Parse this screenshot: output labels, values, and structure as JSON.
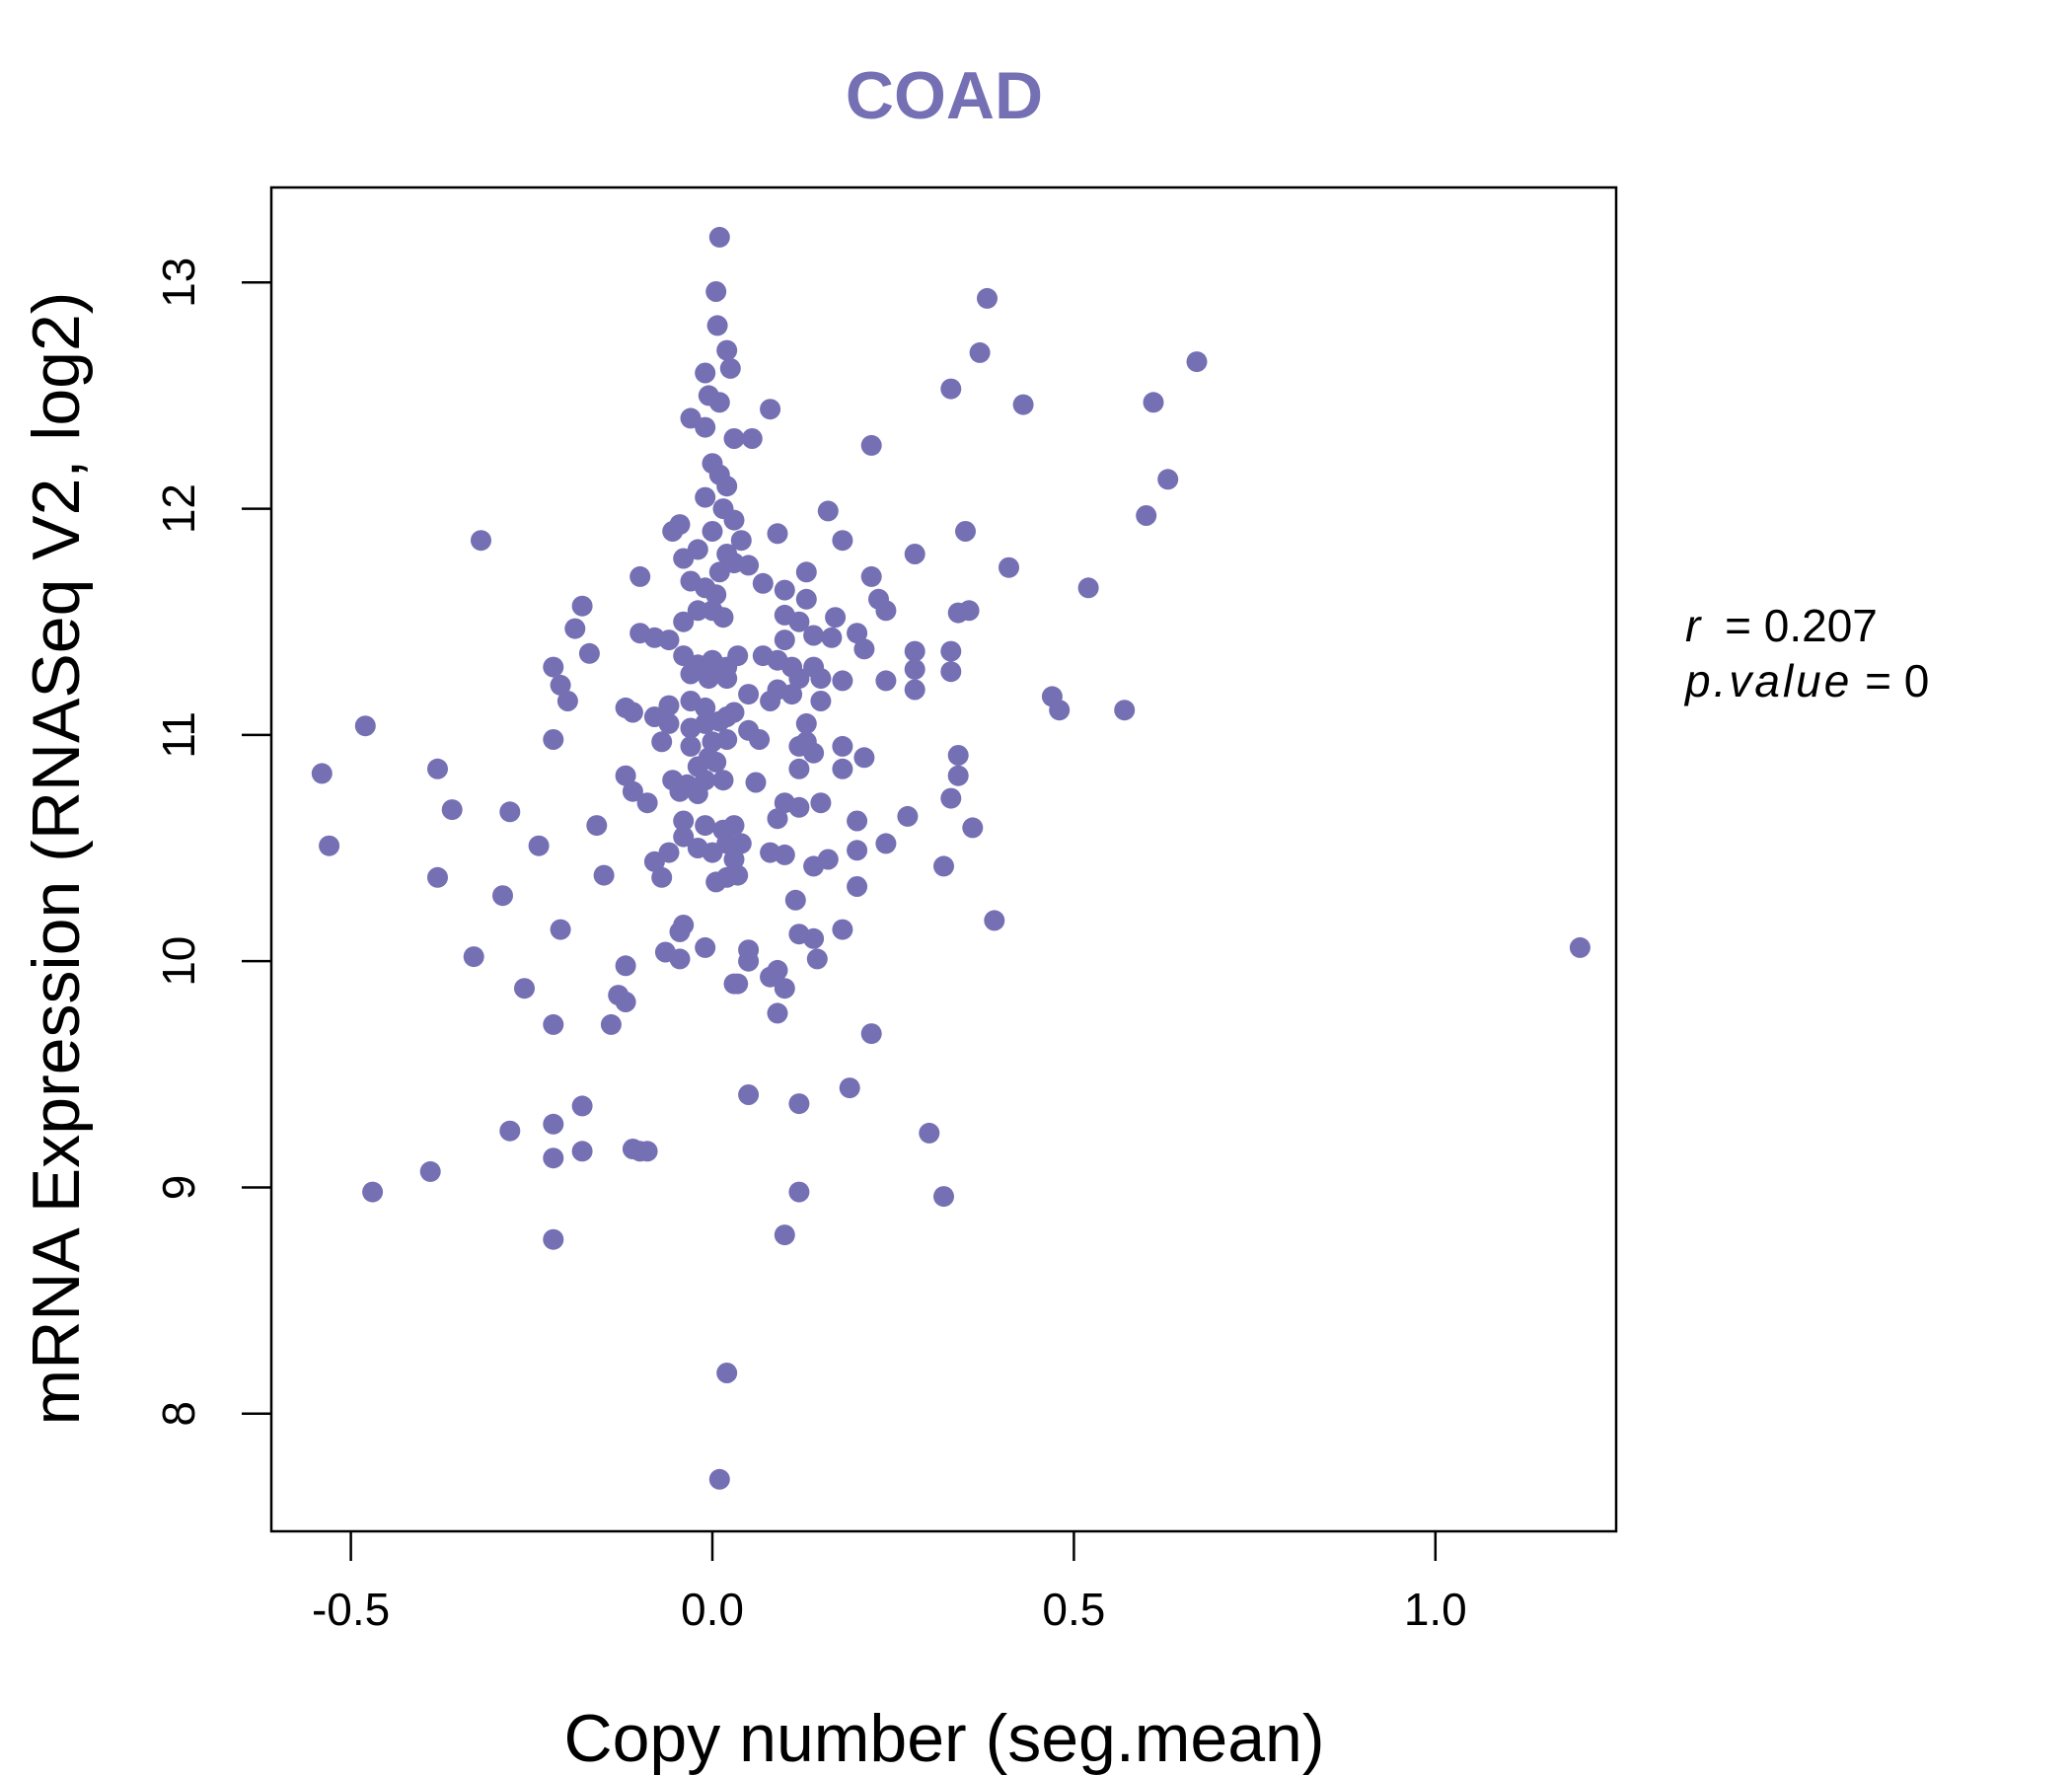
{
  "chart_data": {
    "type": "scatter",
    "title": "COAD",
    "xlabel": "Copy number (seg.mean)",
    "ylabel": "mRNA Expression (RNASeq V2, log2)",
    "xlim": [
      -0.61,
      1.25
    ],
    "ylim": [
      7.48,
      13.42
    ],
    "x_ticks": [
      -0.5,
      0.0,
      0.5,
      1.0
    ],
    "x_tick_labels": [
      "-0.5",
      "0.0",
      "0.5",
      "1.0"
    ],
    "y_ticks": [
      8,
      9,
      10,
      11,
      12,
      13
    ],
    "y_tick_labels": [
      "8",
      "9",
      "10",
      "11",
      "12",
      "13"
    ],
    "stats": {
      "r_label": "r",
      "r_value": "0.207",
      "p_label": "p.value",
      "p_value": "0"
    },
    "point_color": "#7570b3",
    "points": [
      [
        0.01,
        13.2
      ],
      [
        0.005,
        12.96
      ],
      [
        0.007,
        12.81
      ],
      [
        0.02,
        12.7
      ],
      [
        -0.01,
        12.6
      ],
      [
        0.025,
        12.62
      ],
      [
        -0.005,
        12.5
      ],
      [
        0.01,
        12.47
      ],
      [
        0.08,
        12.44
      ],
      [
        -0.03,
        12.4
      ],
      [
        -0.01,
        12.36
      ],
      [
        0.03,
        12.31
      ],
      [
        0.055,
        12.31
      ],
      [
        0.0,
        12.2
      ],
      [
        0.01,
        12.15
      ],
      [
        0.02,
        12.1
      ],
      [
        -0.01,
        12.05
      ],
      [
        0.015,
        12.0
      ],
      [
        0.03,
        11.95
      ],
      [
        -0.045,
        11.93
      ],
      [
        -0.055,
        11.9
      ],
      [
        0.0,
        11.9
      ],
      [
        0.04,
        11.86
      ],
      [
        0.09,
        11.89
      ],
      [
        -0.04,
        11.78
      ],
      [
        -0.02,
        11.82
      ],
      [
        0.02,
        11.8
      ],
      [
        0.03,
        11.76
      ],
      [
        0.05,
        11.75
      ],
      [
        0.01,
        11.72
      ],
      [
        -0.1,
        11.7
      ],
      [
        -0.03,
        11.68
      ],
      [
        -0.01,
        11.65
      ],
      [
        0.005,
        11.62
      ],
      [
        0.07,
        11.67
      ],
      [
        -0.02,
        11.55
      ],
      [
        0.0,
        11.55
      ],
      [
        0.015,
        11.52
      ],
      [
        -0.04,
        11.5
      ],
      [
        -0.18,
        11.57
      ],
      [
        -0.1,
        11.45
      ],
      [
        -0.08,
        11.43
      ],
      [
        -0.06,
        11.42
      ],
      [
        -0.19,
        11.47
      ],
      [
        -0.17,
        11.36
      ],
      [
        -0.04,
        11.35
      ],
      [
        -0.02,
        11.31
      ],
      [
        0.0,
        11.33
      ],
      [
        0.01,
        11.3
      ],
      [
        0.02,
        11.3
      ],
      [
        0.035,
        11.35
      ],
      [
        0.07,
        11.35
      ],
      [
        0.09,
        11.33
      ],
      [
        -0.03,
        11.27
      ],
      [
        -0.005,
        11.25
      ],
      [
        0.02,
        11.25
      ],
      [
        -0.22,
        11.3
      ],
      [
        -0.21,
        11.22
      ],
      [
        -0.2,
        11.15
      ],
      [
        -0.12,
        11.12
      ],
      [
        -0.11,
        11.1
      ],
      [
        -0.08,
        11.08
      ],
      [
        -0.06,
        11.13
      ],
      [
        -0.03,
        11.15
      ],
      [
        -0.01,
        11.12
      ],
      [
        0.03,
        11.1
      ],
      [
        0.05,
        11.18
      ],
      [
        -0.06,
        11.05
      ],
      [
        -0.03,
        11.03
      ],
      [
        -0.01,
        11.05
      ],
      [
        0.01,
        11.06
      ],
      [
        0.02,
        11.08
      ],
      [
        0.05,
        11.02
      ],
      [
        -0.07,
        10.97
      ],
      [
        -0.03,
        10.95
      ],
      [
        0.0,
        10.97
      ],
      [
        0.02,
        10.98
      ],
      [
        0.065,
        10.98
      ],
      [
        -0.22,
        10.98
      ],
      [
        -0.005,
        10.9
      ],
      [
        0.005,
        10.88
      ],
      [
        -0.055,
        10.8
      ],
      [
        -0.035,
        10.78
      ],
      [
        -0.01,
        10.8
      ],
      [
        0.015,
        10.8
      ],
      [
        -0.02,
        10.86
      ],
      [
        -0.12,
        10.82
      ],
      [
        -0.11,
        10.75
      ],
      [
        -0.09,
        10.7
      ],
      [
        -0.045,
        10.75
      ],
      [
        -0.02,
        10.74
      ],
      [
        0.06,
        10.79
      ],
      [
        -0.04,
        10.62
      ],
      [
        -0.01,
        10.6
      ],
      [
        0.015,
        10.58
      ],
      [
        0.03,
        10.6
      ],
      [
        -0.16,
        10.6
      ],
      [
        -0.04,
        10.55
      ],
      [
        -0.02,
        10.5
      ],
      [
        0.0,
        10.48
      ],
      [
        0.02,
        10.52
      ],
      [
        0.04,
        10.52
      ],
      [
        -0.06,
        10.48
      ],
      [
        -0.08,
        10.44
      ],
      [
        -0.07,
        10.37
      ],
      [
        0.005,
        10.35
      ],
      [
        0.02,
        10.37
      ],
      [
        0.035,
        10.38
      ],
      [
        0.03,
        10.45
      ],
      [
        -0.15,
        10.38
      ],
      [
        -0.04,
        10.16
      ],
      [
        -0.045,
        10.13
      ],
      [
        -0.065,
        10.04
      ],
      [
        -0.045,
        10.01
      ],
      [
        -0.01,
        10.06
      ],
      [
        0.05,
        10.05
      ],
      [
        0.05,
        10.0
      ],
      [
        0.035,
        9.9
      ],
      [
        0.03,
        9.9
      ],
      [
        0.08,
        9.93
      ],
      [
        0.09,
        9.96
      ],
      [
        0.1,
        9.88
      ],
      [
        0.09,
        9.77
      ],
      [
        -0.12,
        9.98
      ],
      [
        -0.13,
        9.85
      ],
      [
        -0.12,
        9.82
      ],
      [
        -0.14,
        9.72
      ],
      [
        0.05,
        9.41
      ],
      [
        0.12,
        9.37
      ],
      [
        0.19,
        9.44
      ],
      [
        -0.18,
        9.36
      ],
      [
        -0.22,
        9.28
      ],
      [
        -0.28,
        9.25
      ],
      [
        -0.22,
        9.13
      ],
      [
        -0.18,
        9.16
      ],
      [
        -0.11,
        9.17
      ],
      [
        -0.1,
        9.16
      ],
      [
        -0.09,
        9.16
      ],
      [
        -0.39,
        9.07
      ],
      [
        -0.47,
        8.98
      ],
      [
        -0.22,
        8.77
      ],
      [
        0.1,
        8.79
      ],
      [
        0.12,
        8.98
      ],
      [
        0.02,
        8.18
      ],
      [
        0.01,
        7.71
      ],
      [
        0.1,
        11.64
      ],
      [
        0.13,
        11.72
      ],
      [
        0.16,
        11.99
      ],
      [
        0.18,
        11.86
      ],
      [
        0.22,
        11.7
      ],
      [
        0.13,
        11.6
      ],
      [
        0.23,
        11.6
      ],
      [
        0.24,
        11.55
      ],
      [
        0.1,
        11.53
      ],
      [
        0.12,
        11.5
      ],
      [
        0.17,
        11.52
      ],
      [
        0.1,
        11.42
      ],
      [
        0.14,
        11.44
      ],
      [
        0.165,
        11.43
      ],
      [
        0.2,
        11.45
      ],
      [
        0.21,
        11.38
      ],
      [
        0.11,
        11.3
      ],
      [
        0.14,
        11.3
      ],
      [
        0.15,
        11.25
      ],
      [
        0.12,
        11.25
      ],
      [
        0.18,
        11.24
      ],
      [
        0.09,
        11.2
      ],
      [
        0.11,
        11.18
      ],
      [
        0.15,
        11.15
      ],
      [
        0.08,
        11.15
      ],
      [
        0.28,
        11.37
      ],
      [
        0.28,
        11.29
      ],
      [
        0.28,
        11.2
      ],
      [
        0.24,
        11.24
      ],
      [
        0.13,
        11.05
      ],
      [
        0.13,
        10.97
      ],
      [
        0.12,
        10.95
      ],
      [
        0.14,
        10.92
      ],
      [
        0.12,
        10.85
      ],
      [
        0.18,
        10.95
      ],
      [
        0.21,
        10.9
      ],
      [
        0.18,
        10.85
      ],
      [
        0.09,
        10.63
      ],
      [
        0.1,
        10.7
      ],
      [
        0.12,
        10.68
      ],
      [
        0.15,
        10.7
      ],
      [
        0.2,
        10.62
      ],
      [
        0.27,
        10.64
      ],
      [
        0.08,
        10.48
      ],
      [
        0.1,
        10.47
      ],
      [
        0.14,
        10.42
      ],
      [
        0.16,
        10.45
      ],
      [
        0.2,
        10.49
      ],
      [
        0.24,
        10.52
      ],
      [
        0.2,
        10.33
      ],
      [
        0.115,
        10.27
      ],
      [
        0.12,
        10.12
      ],
      [
        0.14,
        10.1
      ],
      [
        0.18,
        10.14
      ],
      [
        0.145,
        10.01
      ],
      [
        0.22,
        9.68
      ],
      [
        0.22,
        12.28
      ],
      [
        0.28,
        11.8
      ],
      [
        0.3,
        9.24
      ],
      [
        0.32,
        8.96
      ],
      [
        0.32,
        10.42
      ],
      [
        0.33,
        12.53
      ],
      [
        0.34,
        11.54
      ],
      [
        0.35,
        11.9
      ],
      [
        0.355,
        11.55
      ],
      [
        0.33,
        11.37
      ],
      [
        0.33,
        11.28
      ],
      [
        0.34,
        10.91
      ],
      [
        0.34,
        10.82
      ],
      [
        0.33,
        10.72
      ],
      [
        0.36,
        10.59
      ],
      [
        0.39,
        10.18
      ],
      [
        0.37,
        12.69
      ],
      [
        0.38,
        12.93
      ],
      [
        0.43,
        12.46
      ],
      [
        0.41,
        11.74
      ],
      [
        0.47,
        11.17
      ],
      [
        0.48,
        11.11
      ],
      [
        0.52,
        11.65
      ],
      [
        0.57,
        11.11
      ],
      [
        0.6,
        11.97
      ],
      [
        0.61,
        12.47
      ],
      [
        0.63,
        12.13
      ],
      [
        0.67,
        12.65
      ],
      [
        1.2,
        10.06
      ],
      [
        -0.32,
        11.86
      ],
      [
        -0.54,
        10.83
      ],
      [
        -0.53,
        10.51
      ],
      [
        -0.48,
        11.04
      ],
      [
        -0.38,
        10.85
      ],
      [
        -0.36,
        10.67
      ],
      [
        -0.38,
        10.37
      ],
      [
        -0.28,
        10.66
      ],
      [
        -0.29,
        10.29
      ],
      [
        -0.24,
        10.51
      ],
      [
        -0.21,
        10.14
      ],
      [
        -0.33,
        10.02
      ],
      [
        -0.26,
        9.88
      ],
      [
        -0.22,
        9.72
      ]
    ]
  }
}
